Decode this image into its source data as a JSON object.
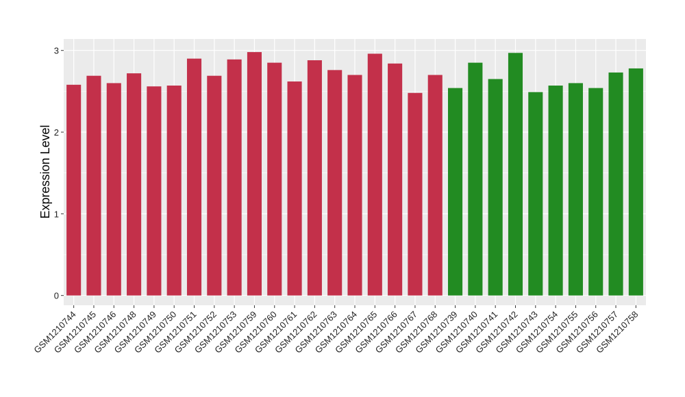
{
  "chart_data": {
    "type": "bar",
    "title": "",
    "xlabel": "",
    "ylabel": "Expression Level",
    "ylim": [
      -0.12,
      3.14
    ],
    "yticks": [
      0,
      1,
      2,
      3
    ],
    "grid": true,
    "legend": "none",
    "categories": [
      "GSM1210744",
      "GSM1210745",
      "GSM1210746",
      "GSM1210748",
      "GSM1210749",
      "GSM1210750",
      "GSM1210751",
      "GSM1210752",
      "GSM1210753",
      "GSM1210759",
      "GSM1210760",
      "GSM1210761",
      "GSM1210762",
      "GSM1210763",
      "GSM1210764",
      "GSM1210765",
      "GSM1210766",
      "GSM1210767",
      "GSM1210768",
      "GSM1210739",
      "GSM1210740",
      "GSM1210741",
      "GSM1210742",
      "GSM1210743",
      "GSM1210754",
      "GSM1210755",
      "GSM1210756",
      "GSM1210757",
      "GSM1210758"
    ],
    "values": [
      2.58,
      2.69,
      2.6,
      2.72,
      2.56,
      2.57,
      2.9,
      2.69,
      2.89,
      2.98,
      2.85,
      2.62,
      2.88,
      2.76,
      2.7,
      2.96,
      2.84,
      2.48,
      2.7,
      2.54,
      2.85,
      2.65,
      2.97,
      2.49,
      2.57,
      2.6,
      2.54,
      2.73,
      2.78
    ],
    "groups": [
      "a",
      "a",
      "a",
      "a",
      "a",
      "a",
      "a",
      "a",
      "a",
      "a",
      "a",
      "a",
      "a",
      "a",
      "a",
      "a",
      "a",
      "a",
      "a",
      "b",
      "b",
      "b",
      "b",
      "b",
      "b",
      "b",
      "b",
      "b",
      "b"
    ],
    "colors": {
      "a": "#C3304A",
      "b": "#228B22"
    },
    "panel_background": "#EBEBEB",
    "grid_color": "#FFFFFF"
  }
}
